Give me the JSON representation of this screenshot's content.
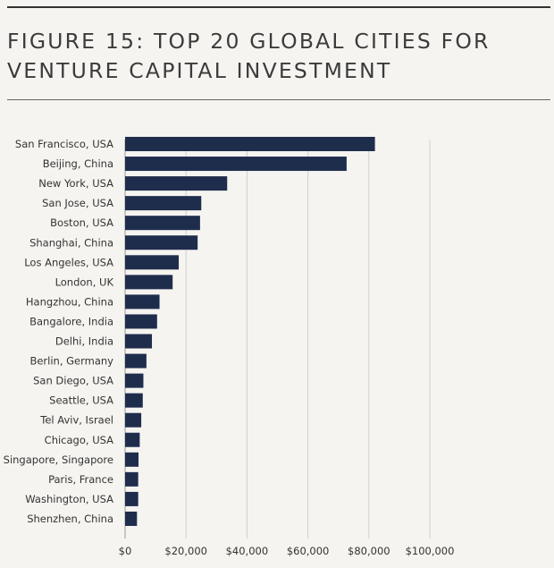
{
  "chart_data": {
    "type": "bar",
    "orientation": "horizontal",
    "title": "FIGURE 15: TOP 20 GLOBAL CITIES FOR VENTURE CAPITAL INVESTMENT",
    "categories": [
      "San Francisco, USA",
      "Beijing, China",
      "New York, USA",
      "San Jose, USA",
      "Boston, USA",
      "Shanghai, China",
      "Los Angeles, USA",
      "London, UK",
      "Hangzhou, China",
      "Bangalore, India",
      "Delhi, India",
      "Berlin, Germany",
      "San Diego, USA",
      "Seattle, USA",
      "Tel Aviv, Israel",
      "Chicago, USA",
      "Singapore, Singapore",
      "Paris, France",
      "Washington, USA",
      "Shenzhen, China"
    ],
    "values": [
      82000,
      72700,
      33500,
      25000,
      24600,
      23800,
      17600,
      15600,
      11300,
      10500,
      8800,
      7000,
      6000,
      5800,
      5300,
      4800,
      4400,
      4300,
      4300,
      3900
    ],
    "xlim": [
      0,
      100000
    ],
    "xticks": [
      0,
      20000,
      40000,
      60000,
      80000,
      100000
    ],
    "xtick_labels": [
      "$0",
      "$20,000",
      "$40,000",
      "$60,000",
      "$80,000",
      "$100,000"
    ],
    "grid": true,
    "bar_color": "#1f2d4d",
    "grid_color": "#cfcfcf"
  }
}
